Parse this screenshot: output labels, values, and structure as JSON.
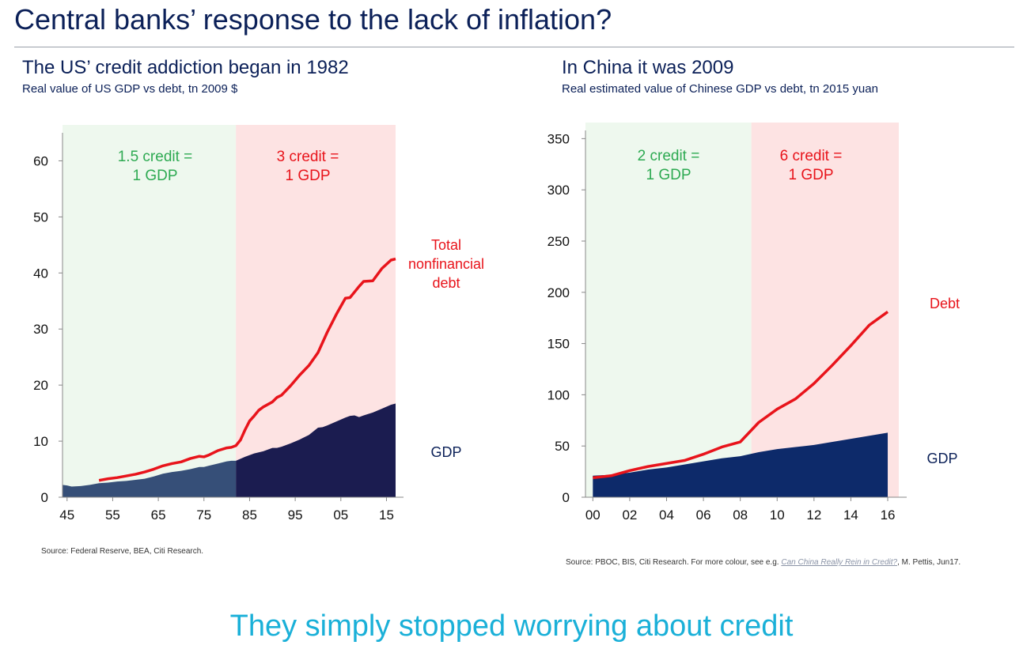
{
  "slide": {
    "title": "Central banks’ response to the lack of inflation?",
    "footer": "They simply stopped worrying about credit"
  },
  "colors": {
    "title": "#0b2058",
    "green_shade": "#eef8ee",
    "pink_shade": "#fde3e3",
    "green_text": "#2eaa52",
    "red": "#e8141b",
    "gdp_early": "#364f78",
    "gdp_late": "#1b1c50",
    "gdp_china": "#0d2a6a",
    "footer": "#1ab0d8"
  },
  "us": {
    "title": "The US’ credit addiction began in 1982",
    "subtitle": "Real value of US GDP vs debt, tn 2009 $",
    "source": "Source: Federal Reserve, BEA, Citi Research."
  },
  "china": {
    "title": "In China it was 2009",
    "subtitle": "Real estimated value of Chinese GDP vs debt, tn 2015 yuan",
    "source_pre": "Source: PBOC, BIS, Citi Research. For more colour, see e.g. ",
    "source_link": "Can China Really Rein in Credit?",
    "source_post": ", M. Pettis, Jun17."
  },
  "chart_data": [
    {
      "type": "area",
      "xlim": [
        1944,
        2017
      ],
      "ylim": [
        0,
        65
      ],
      "yticks": [
        0,
        10,
        20,
        30,
        40,
        50,
        60
      ],
      "xtick_values": [
        1945,
        1955,
        1965,
        1975,
        1985,
        1995,
        2005,
        2015
      ],
      "xtick_labels": [
        "45",
        "55",
        "65",
        "75",
        "85",
        "95",
        "05",
        "15"
      ],
      "regions": [
        {
          "from": 1944,
          "to": 1982,
          "color": "green",
          "label_lines": [
            "1.5 credit =",
            "1 GDP"
          ]
        },
        {
          "from": 1982,
          "to": 2017,
          "color": "pink",
          "label_lines": [
            "3 credit =",
            "1 GDP"
          ]
        }
      ],
      "series": [
        {
          "name": "GDP",
          "label_lines": [
            "GDP"
          ],
          "kind": "area",
          "split_year": 1982,
          "x": [
            1944,
            1945,
            1946,
            1948,
            1950,
            1952,
            1954,
            1956,
            1958,
            1960,
            1962,
            1964,
            1966,
            1968,
            1970,
            1972,
            1974,
            1975,
            1976,
            1978,
            1980,
            1981,
            1982,
            1984,
            1986,
            1988,
            1990,
            1991,
            1992,
            1994,
            1996,
            1998,
            2000,
            2001,
            2002,
            2004,
            2006,
            2007,
            2008,
            2009,
            2010,
            2012,
            2014,
            2016,
            2017
          ],
          "y": [
            2.2,
            2.1,
            1.9,
            2.0,
            2.2,
            2.5,
            2.6,
            2.8,
            2.9,
            3.1,
            3.3,
            3.7,
            4.2,
            4.5,
            4.7,
            5.0,
            5.4,
            5.4,
            5.6,
            6.0,
            6.4,
            6.5,
            6.5,
            7.2,
            7.8,
            8.2,
            8.8,
            8.8,
            9.0,
            9.6,
            10.3,
            11.1,
            12.4,
            12.5,
            12.8,
            13.5,
            14.2,
            14.5,
            14.6,
            14.3,
            14.6,
            15.1,
            15.8,
            16.5,
            16.7
          ]
        },
        {
          "name": "Total nonfinancial debt",
          "label_lines": [
            "Total",
            "nonfinancial",
            "debt"
          ],
          "kind": "line",
          "x": [
            1952,
            1954,
            1956,
            1958,
            1960,
            1962,
            1964,
            1966,
            1968,
            1970,
            1972,
            1974,
            1975,
            1976,
            1978,
            1980,
            1981,
            1982,
            1983,
            1984,
            1985,
            1986,
            1987,
            1988,
            1990,
            1991,
            1992,
            1994,
            1996,
            1998,
            2000,
            2002,
            2004,
            2006,
            2007,
            2008,
            2009,
            2010,
            2012,
            2014,
            2016,
            2017
          ],
          "y": [
            3.0,
            3.3,
            3.5,
            3.8,
            4.1,
            4.5,
            5.0,
            5.6,
            6.0,
            6.3,
            6.9,
            7.3,
            7.2,
            7.5,
            8.3,
            8.8,
            8.9,
            9.2,
            10.2,
            12.0,
            13.6,
            14.5,
            15.5,
            16.1,
            17.0,
            17.8,
            18.2,
            19.9,
            21.8,
            23.5,
            25.8,
            29.4,
            32.6,
            35.5,
            35.6,
            36.6,
            37.6,
            38.5,
            38.6,
            40.8,
            42.3,
            42.5
          ]
        }
      ]
    },
    {
      "type": "area",
      "xlim": [
        1999.6,
        2016.6
      ],
      "ylim": [
        0,
        358
      ],
      "yticks": [
        0,
        50,
        100,
        150,
        200,
        250,
        300,
        350
      ],
      "xtick_values": [
        2000,
        2002,
        2004,
        2006,
        2008,
        2010,
        2012,
        2014,
        2016
      ],
      "xtick_labels": [
        "00",
        "02",
        "04",
        "06",
        "08",
        "10",
        "12",
        "14",
        "16"
      ],
      "regions": [
        {
          "from": 1999.6,
          "to": 2008.6,
          "color": "green",
          "label_lines": [
            "2 credit =",
            "1 GDP"
          ]
        },
        {
          "from": 2008.6,
          "to": 2016.6,
          "color": "pink",
          "label_lines": [
            "6 credit =",
            "1 GDP"
          ]
        }
      ],
      "series": [
        {
          "name": "GDP",
          "label_lines": [
            "GDP"
          ],
          "kind": "area",
          "x": [
            2000,
            2001,
            2002,
            2003,
            2004,
            2005,
            2006,
            2007,
            2008,
            2009,
            2010,
            2011,
            2012,
            2013,
            2014,
            2015,
            2016
          ],
          "y": [
            21,
            22,
            24,
            27,
            29,
            32,
            35,
            38,
            40,
            44,
            47,
            49,
            51,
            54,
            57,
            60,
            63
          ]
        },
        {
          "name": "Debt",
          "label_lines": [
            "Debt"
          ],
          "kind": "line",
          "x": [
            2000,
            2001,
            2002,
            2003,
            2004,
            2005,
            2006,
            2007,
            2008,
            2009,
            2010,
            2011,
            2012,
            2013,
            2014,
            2015,
            2016
          ],
          "y": [
            19,
            21,
            26,
            30,
            33,
            36,
            42,
            49,
            54,
            73,
            86,
            96,
            111,
            129,
            148,
            168,
            181
          ]
        }
      ]
    }
  ]
}
